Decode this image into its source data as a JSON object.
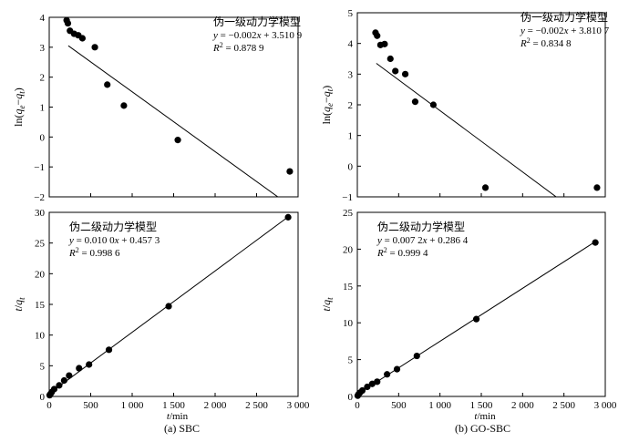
{
  "chart_data": [
    {
      "id": "a-top",
      "type": "scatter",
      "title": "伪一级动力学模型",
      "equation": "y = −0.002x + 3.510 9",
      "r2_label": "R",
      "r2_value": "= 0.878 9",
      "ylabel": "ln(qe−qt)",
      "xlim": [
        0,
        3000
      ],
      "ylim": [
        -2,
        4
      ],
      "yticks": [
        -2,
        -1,
        0,
        1,
        2,
        3,
        4
      ],
      "xticks": [
        0,
        500,
        1000,
        1500,
        2000,
        2500,
        3000
      ],
      "xtick_labels": [],
      "fit": {
        "slope": -0.002,
        "intercept": 3.5109,
        "x_start": 230,
        "x_end": 2880
      },
      "x": [
        210,
        225,
        250,
        300,
        350,
        400,
        550,
        700,
        900,
        1550,
        2900
      ],
      "y": [
        3.9,
        3.8,
        3.55,
        3.45,
        3.4,
        3.3,
        3.0,
        1.75,
        1.05,
        -0.1,
        -1.15
      ]
    },
    {
      "id": "a-bottom",
      "type": "scatter",
      "title": "伪二级动力学模型",
      "equation": "y = 0.010 0x + 0.457 3",
      "r2_label": "R",
      "r2_value": "= 0.998 6",
      "ylabel": "t/qt",
      "xlabel": "t/min",
      "xlim": [
        0,
        3000
      ],
      "ylim": [
        0,
        30
      ],
      "yticks": [
        0,
        5,
        10,
        15,
        20,
        25,
        30
      ],
      "xticks": [
        0,
        500,
        1000,
        1500,
        2000,
        2500,
        3000
      ],
      "xtick_labels": [
        "0",
        "500",
        "1 000",
        "1 500",
        "2 000",
        "2 500",
        "3 000"
      ],
      "fit": {
        "slope": 0.01,
        "intercept": 0.4573,
        "x_start": 0,
        "x_end": 2900
      },
      "x": [
        5,
        15,
        30,
        60,
        120,
        180,
        240,
        360,
        480,
        720,
        1440,
        2880
      ],
      "y": [
        0.2,
        0.4,
        0.7,
        1.2,
        1.8,
        2.6,
        3.4,
        4.6,
        5.2,
        7.6,
        14.7,
        29.2
      ]
    },
    {
      "id": "b-top",
      "type": "scatter",
      "title": "伪一级动力学模型",
      "equation": "y = −0.002x + 3.810 7",
      "r2_label": "R",
      "r2_value": "= 0.834 8",
      "ylabel": "ln(qe−qt)",
      "xlim": [
        0,
        3000
      ],
      "ylim": [
        -1,
        5
      ],
      "yticks": [
        -1,
        0,
        1,
        2,
        3,
        4,
        5
      ],
      "xticks": [
        0,
        500,
        1000,
        1500,
        2000,
        2500,
        3000
      ],
      "xtick_labels": [],
      "fit": {
        "slope": -0.002,
        "intercept": 3.8107,
        "x_start": 230,
        "x_end": 2475
      },
      "x": [
        220,
        240,
        280,
        330,
        400,
        460,
        580,
        700,
        920,
        1550,
        2900
      ],
      "y": [
        4.35,
        4.25,
        3.95,
        3.98,
        3.5,
        3.1,
        3.0,
        2.1,
        2.0,
        -0.7,
        -0.7
      ]
    },
    {
      "id": "b-bottom",
      "type": "scatter",
      "title": "伪二级动力学模型",
      "equation": "y = 0.007 2x + 0.286 4",
      "r2_label": "R",
      "r2_value": "= 0.999 4",
      "ylabel": "t/qt",
      "xlabel": "t/min",
      "xlim": [
        0,
        3000
      ],
      "ylim": [
        0,
        25
      ],
      "yticks": [
        0,
        5,
        10,
        15,
        20,
        25
      ],
      "xticks": [
        0,
        500,
        1000,
        1500,
        2000,
        2500,
        3000
      ],
      "xtick_labels": [
        "0",
        "500",
        "1 000",
        "1 500",
        "2 000",
        "2 500",
        "3 000"
      ],
      "fit": {
        "slope": 0.0072,
        "intercept": 0.2864,
        "x_start": 0,
        "x_end": 2900
      },
      "x": [
        5,
        15,
        30,
        60,
        120,
        180,
        240,
        360,
        480,
        720,
        1440,
        2880
      ],
      "y": [
        0.1,
        0.3,
        0.5,
        0.8,
        1.3,
        1.7,
        2.0,
        3.0,
        3.7,
        5.5,
        10.5,
        20.9
      ]
    }
  ],
  "captions": {
    "a": "(a) SBC",
    "b": "(b) GO-SBC"
  }
}
